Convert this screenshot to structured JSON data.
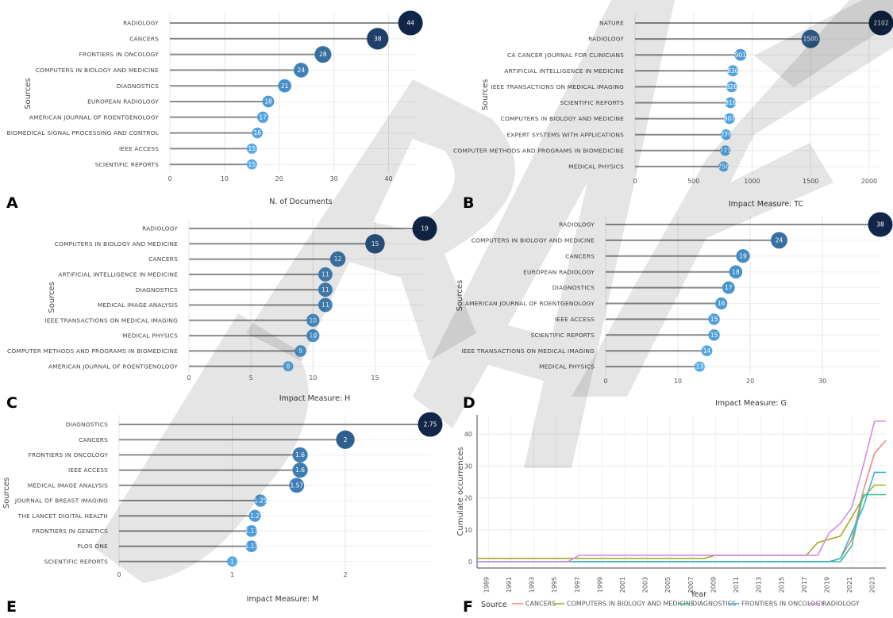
{
  "chart_data": [
    {
      "id": "A",
      "type": "lollipop",
      "panel_label": "A",
      "xlabel": "N. of Documents",
      "ylabel": "Sources",
      "xlim": [
        0,
        45
      ],
      "xticks": [
        0,
        10,
        20,
        30,
        40
      ],
      "categories": [
        "RADIOLOGY",
        "CANCERS",
        "FRONTIERS IN ONCOLOGY",
        "COMPUTERS IN BIOLOGY AND MEDICINE",
        "DIAGNOSTICS",
        "EUROPEAN RADIOLOGY",
        "AMERICAN JOURNAL OF ROENTGENOLOGY",
        "BIOMEDICAL SIGNAL PROCESSING AND CONTROL",
        "IEEE ACCESS",
        "SCIENTIFIC REPORTS"
      ],
      "values": [
        44,
        38,
        28,
        24,
        21,
        18,
        17,
        16,
        15,
        15
      ],
      "labels": [
        "44",
        "38",
        "28",
        "24",
        "21",
        "18",
        "17",
        "16",
        "15",
        "15"
      ]
    },
    {
      "id": "B",
      "type": "lollipop",
      "panel_label": "B",
      "xlabel": "Impact Measure: TC",
      "ylabel": "Sources",
      "xlim": [
        0,
        2102
      ],
      "xticks": [
        0,
        500,
        1000,
        1500,
        2000
      ],
      "categories": [
        "NATURE",
        "RADIOLOGY",
        "CA CANCER JOURNAL FOR CLINICIANS",
        "ARTIFICIAL INTELLIGENCE IN MEDICINE",
        "IEEE TRANSACTIONS ON MEDICAL IMAGING",
        "SCIENTIFIC REPORTS",
        "COMPUTERS IN BIOLOGY AND MEDICINE",
        "EXPERT SYSTEMS WITH APPLICATIONS",
        "COMPUTER METHODS AND PROGRAMS IN BIOMEDICINE",
        "MEDICAL PHYSICS"
      ],
      "values": [
        2102,
        1500,
        901,
        836,
        826,
        816,
        807,
        778,
        771,
        756
      ],
      "labels": [
        "2102",
        "1500",
        "901",
        "836",
        "826",
        "816",
        "807",
        "778",
        "771",
        "756"
      ]
    },
    {
      "id": "C",
      "type": "lollipop",
      "panel_label": "C",
      "xlabel": "Impact Measure: H",
      "ylabel": "Sources",
      "xlim": [
        0,
        19
      ],
      "xticks": [
        0,
        5,
        10,
        15
      ],
      "categories": [
        "RADIOLOGY",
        "COMPUTERS IN BIOLOGY AND MEDICINE",
        "CANCERS",
        "ARTIFICIAL INTELLIGENCE IN MEDICINE",
        "DIAGNOSTICS",
        "MEDICAL IMAGE ANALYSIS",
        "IEEE TRANSACTIONS ON MEDICAL IMAGING",
        "MEDICAL PHYSICS",
        "COMPUTER METHODS AND PROGRAMS IN BIOMEDICINE",
        "AMERICAN JOURNAL OF ROENTGENOLOGY"
      ],
      "values": [
        19,
        15,
        12,
        11,
        11,
        11,
        10,
        10,
        9,
        8
      ],
      "labels": [
        "19",
        "15",
        "12",
        "11",
        "11",
        "11",
        "10",
        "10",
        "9",
        "8"
      ]
    },
    {
      "id": "D",
      "type": "lollipop",
      "panel_label": "D",
      "xlabel": "Impact Measure: G",
      "ylabel": "Sources",
      "xlim": [
        0,
        38
      ],
      "xticks": [
        0,
        10,
        20,
        30
      ],
      "categories": [
        "RADIOLOGY",
        "COMPUTERS IN BIOLOGY AND MEDICINE",
        "CANCERS",
        "EUROPEAN RADIOLOGY",
        "DIAGNOSTICS",
        "AMERICAN JOURNAL OF ROENTGENOLOGY",
        "IEEE ACCESS",
        "SCIENTIFIC REPORTS",
        "IEEE TRANSACTIONS ON MEDICAL IMAGING",
        "MEDICAL PHYSICS"
      ],
      "values": [
        38,
        24,
        19,
        18,
        17,
        16,
        15,
        15,
        14,
        13
      ],
      "labels": [
        "38",
        "24",
        "19",
        "18",
        "17",
        "16",
        "15",
        "15",
        "14",
        "13"
      ]
    },
    {
      "id": "E",
      "type": "lollipop",
      "panel_label": "E",
      "xlabel": "Impact Measure: M",
      "ylabel": "Sources",
      "xlim": [
        0,
        2.75
      ],
      "xticks": [
        0,
        1,
        2
      ],
      "categories": [
        "DIAGNOSTICS",
        "CANCERS",
        "FRONTIERS IN ONCOLOGY",
        "IEEE ACCESS",
        "MEDICAL IMAGE ANALYSIS",
        "JOURNAL OF BREAST IMAGING",
        "THE LANCET DIGITAL HEALTH",
        "FRONTIERS IN GENETICS",
        "PLOS ONE",
        "SCIENTIFIC REPORTS"
      ],
      "values": [
        2.75,
        2,
        1.6,
        1.6,
        1.57,
        1.25,
        1.2,
        1.17,
        1.17,
        1
      ],
      "labels": [
        "2.75",
        "2",
        "1.6",
        "1.6",
        "1.57",
        "1.25",
        "1.2",
        "1.17",
        "1.17",
        "1"
      ]
    },
    {
      "id": "F",
      "type": "line",
      "panel_label": "F",
      "xlabel": "Year",
      "ylabel": "Cumulate occurrences",
      "legend_title": "Source",
      "legend_position": "bottom",
      "xlim": [
        1988,
        2024
      ],
      "ylim": [
        -2,
        46
      ],
      "yticks": [
        0,
        10,
        20,
        30,
        40
      ],
      "xticks": [
        1989,
        1991,
        1993,
        1995,
        1997,
        1999,
        2001,
        2003,
        2005,
        2007,
        2009,
        2011,
        2013,
        2015,
        2017,
        2019,
        2021,
        2023
      ],
      "series": [
        {
          "name": "CANCERS",
          "color": "#f08a8a",
          "points": [
            [
              1988,
              0
            ],
            [
              2017,
              0
            ],
            [
              2018,
              0
            ],
            [
              2019,
              0
            ],
            [
              2020,
              1
            ],
            [
              2021,
              7
            ],
            [
              2022,
              22
            ],
            [
              2023,
              34
            ],
            [
              2024,
              38
            ]
          ]
        },
        {
          "name": "COMPUTERS IN BIOLOGY AND MEDICINE",
          "color": "#a8aa2a",
          "points": [
            [
              1988,
              1
            ],
            [
              2008,
              1
            ],
            [
              2009,
              2
            ],
            [
              2017,
              2
            ],
            [
              2018,
              6
            ],
            [
              2019,
              7
            ],
            [
              2020,
              8
            ],
            [
              2021,
              14
            ],
            [
              2022,
              20
            ],
            [
              2023,
              24
            ],
            [
              2024,
              24
            ]
          ]
        },
        {
          "name": "DIAGNOSTICS",
          "color": "#35c090",
          "points": [
            [
              1988,
              0
            ],
            [
              2018,
              0
            ],
            [
              2019,
              0
            ],
            [
              2020,
              0
            ],
            [
              2021,
              5
            ],
            [
              2022,
              21
            ],
            [
              2023,
              21
            ],
            [
              2024,
              21
            ]
          ]
        },
        {
          "name": "FRONTIERS IN ONCOLOGY",
          "color": "#35b3d8",
          "points": [
            [
              1988,
              0
            ],
            [
              2018,
              0
            ],
            [
              2019,
              0
            ],
            [
              2020,
              1
            ],
            [
              2021,
              9
            ],
            [
              2022,
              17
            ],
            [
              2023,
              28
            ],
            [
              2024,
              28
            ]
          ]
        },
        {
          "name": "RADIOLOGY",
          "color": "#d48ce8",
          "points": [
            [
              1988,
              0
            ],
            [
              1996,
              0
            ],
            [
              1997,
              2
            ],
            [
              2017,
              2
            ],
            [
              2018,
              2
            ],
            [
              2019,
              9
            ],
            [
              2020,
              12
            ],
            [
              2021,
              17
            ],
            [
              2022,
              30
            ],
            [
              2023,
              44
            ],
            [
              2024,
              44
            ]
          ]
        }
      ]
    }
  ]
}
